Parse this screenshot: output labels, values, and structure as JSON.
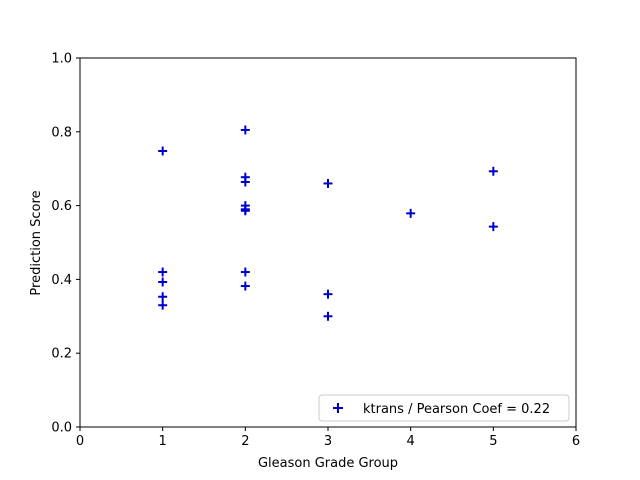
{
  "chart_data": {
    "type": "scatter",
    "xlabel": "Gleason Grade Group",
    "ylabel": "Prediction Score",
    "xlim": [
      0,
      6
    ],
    "ylim": [
      0,
      1.0
    ],
    "xticks": [
      "0",
      "1",
      "2",
      "3",
      "4",
      "5",
      "6"
    ],
    "yticks": [
      "0.0",
      "0.2",
      "0.4",
      "0.6",
      "0.8",
      "1.0"
    ],
    "grid": false,
    "legend_position": "lower-right",
    "series": [
      {
        "name": "ktrans / Pearson Coef = 0.22",
        "marker": "plus",
        "color": "#0000cc",
        "points": [
          {
            "x": 1,
            "y": 0.748
          },
          {
            "x": 1,
            "y": 0.42
          },
          {
            "x": 1,
            "y": 0.393
          },
          {
            "x": 1,
            "y": 0.353
          },
          {
            "x": 1,
            "y": 0.33
          },
          {
            "x": 2,
            "y": 0.805
          },
          {
            "x": 2,
            "y": 0.677
          },
          {
            "x": 2,
            "y": 0.664
          },
          {
            "x": 2,
            "y": 0.6
          },
          {
            "x": 2,
            "y": 0.59
          },
          {
            "x": 2,
            "y": 0.586
          },
          {
            "x": 2,
            "y": 0.42
          },
          {
            "x": 2,
            "y": 0.382
          },
          {
            "x": 3,
            "y": 0.66
          },
          {
            "x": 3,
            "y": 0.36
          },
          {
            "x": 3,
            "y": 0.3
          },
          {
            "x": 4,
            "y": 0.579
          },
          {
            "x": 5,
            "y": 0.693
          },
          {
            "x": 5,
            "y": 0.543
          }
        ]
      }
    ]
  }
}
